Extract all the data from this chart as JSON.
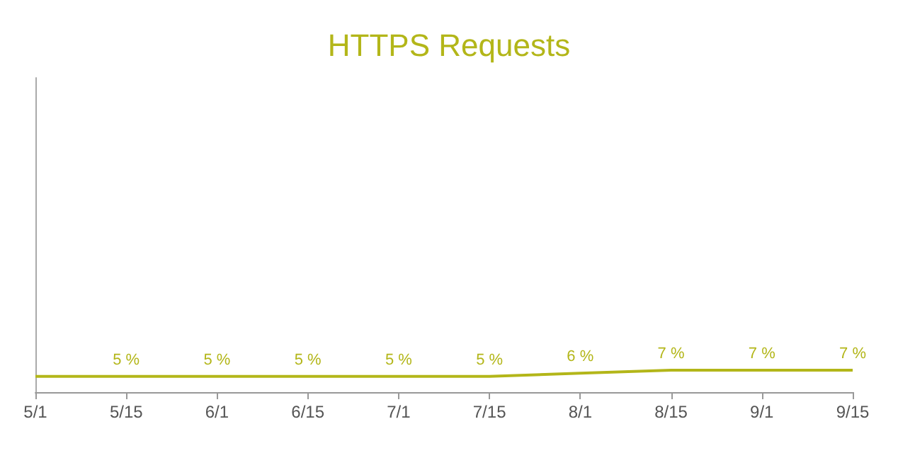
{
  "chart_data": {
    "type": "line",
    "title": "HTTPS Requests",
    "categories": [
      "5/1",
      "5/15",
      "6/1",
      "6/15",
      "7/1",
      "7/15",
      "8/1",
      "8/15",
      "9/1",
      "9/15"
    ],
    "series": [
      {
        "color": "#b3b619",
        "values": [
          5,
          5,
          5,
          5,
          5,
          5,
          6,
          7,
          7,
          7
        ],
        "value_labels": [
          null,
          "5 %",
          "5 %",
          "5 %",
          "5 %",
          "5 %",
          "6 %",
          "7 %",
          "7 %",
          "7 %"
        ]
      }
    ],
    "ylim": [
      0,
      100
    ],
    "tick_labels": "x",
    "grid": false,
    "marker": "none",
    "line_style": "solid"
  }
}
